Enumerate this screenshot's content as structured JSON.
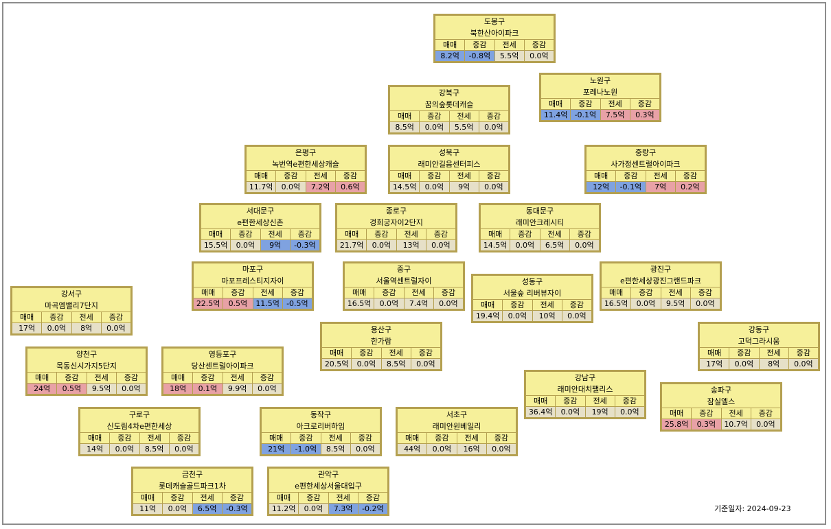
{
  "header_labels": [
    "매매",
    "증감",
    "전세",
    "증감"
  ],
  "colors": {
    "up": "#e8a1a6",
    "down": "#7fa2e0",
    "neutral": "#e6e0c8",
    "card": "#f6f09a",
    "border": "#b4a050"
  },
  "date_label": "기준일자: 2024-09-23",
  "districts": [
    {
      "key": "dobong",
      "name": "도봉구",
      "apt": "북한산아이파크",
      "vals": [
        "8.2억",
        "-0.8억",
        "5.5억",
        "0.0억"
      ],
      "trend": [
        "down",
        "down",
        "",
        ""
      ]
    },
    {
      "key": "nowon",
      "name": "노원구",
      "apt": "포레나노원",
      "vals": [
        "11.4억",
        "-0.1억",
        "7.5억",
        "0.3억"
      ],
      "trend": [
        "down",
        "down",
        "up",
        "up"
      ]
    },
    {
      "key": "gangbuk",
      "name": "강북구",
      "apt": "꿈의숲롯데캐슬",
      "vals": [
        "8.5억",
        "0.0억",
        "5.5억",
        "0.0억"
      ],
      "trend": [
        "",
        "",
        "",
        ""
      ]
    },
    {
      "key": "eunpyeong",
      "name": "은평구",
      "apt": "녹번역e편한세상캐슬",
      "vals": [
        "11.7억",
        "0.0억",
        "7.2억",
        "0.6억"
      ],
      "trend": [
        "",
        "",
        "up",
        "up"
      ]
    },
    {
      "key": "seongbuk",
      "name": "성북구",
      "apt": "래미안길음센터피스",
      "vals": [
        "14.5억",
        "0.0억",
        "9억",
        "0.0억"
      ],
      "trend": [
        "",
        "",
        "",
        ""
      ]
    },
    {
      "key": "jungnang",
      "name": "중랑구",
      "apt": "사가정센트럴아이파크",
      "vals": [
        "12억",
        "-0.1억",
        "7억",
        "0.2억"
      ],
      "trend": [
        "down",
        "down",
        "up",
        "up"
      ]
    },
    {
      "key": "seodaemun",
      "name": "서대문구",
      "apt": "e편한세상신촌",
      "vals": [
        "15.5억",
        "0.0억",
        "9억",
        "-0.3억"
      ],
      "trend": [
        "",
        "",
        "down",
        "down"
      ]
    },
    {
      "key": "jongno",
      "name": "종로구",
      "apt": "경희궁자이2단지",
      "vals": [
        "21.7억",
        "0.0억",
        "13억",
        "0.0억"
      ],
      "trend": [
        "",
        "",
        "",
        ""
      ]
    },
    {
      "key": "dongdaemun",
      "name": "동대문구",
      "apt": "래미안크레시티",
      "vals": [
        "14.5억",
        "0.0억",
        "6.5억",
        "0.0억"
      ],
      "trend": [
        "",
        "",
        "",
        ""
      ]
    },
    {
      "key": "mapo",
      "name": "마포구",
      "apt": "마포프레스티지자이",
      "vals": [
        "22.5억",
        "0.5억",
        "11.5억",
        "-0.5억"
      ],
      "trend": [
        "up",
        "up",
        "down",
        "down"
      ]
    },
    {
      "key": "junggu",
      "name": "중구",
      "apt": "서울역센트럴자이",
      "vals": [
        "16.5억",
        "0.0억",
        "7.4억",
        "0.0억"
      ],
      "trend": [
        "",
        "",
        "",
        ""
      ]
    },
    {
      "key": "gwangjin",
      "name": "광진구",
      "apt": "e편한세상광진그랜드파크",
      "vals": [
        "16.5억",
        "0.0억",
        "9.5억",
        "0.0억"
      ],
      "trend": [
        "",
        "",
        "",
        ""
      ]
    },
    {
      "key": "seongdong",
      "name": "성동구",
      "apt": "서울숲 리버뷰자이",
      "vals": [
        "19.4억",
        "0.0억",
        "10억",
        "0.0억"
      ],
      "trend": [
        "",
        "",
        "",
        ""
      ]
    },
    {
      "key": "gangseo",
      "name": "강서구",
      "apt": "마곡엠밸리7단지",
      "vals": [
        "17억",
        "0.0억",
        "8억",
        "0.0억"
      ],
      "trend": [
        "",
        "",
        "",
        ""
      ]
    },
    {
      "key": "yongsan",
      "name": "용산구",
      "apt": "한가람",
      "vals": [
        "20.5억",
        "0.0억",
        "8.5억",
        "0.0억"
      ],
      "trend": [
        "",
        "",
        "",
        ""
      ]
    },
    {
      "key": "gangdong",
      "name": "강동구",
      "apt": "고덕그라시움",
      "vals": [
        "17억",
        "0.0억",
        "8억",
        "0.0억"
      ],
      "trend": [
        "",
        "",
        "",
        ""
      ]
    },
    {
      "key": "yangcheon",
      "name": "양천구",
      "apt": "목동신시가지5단지",
      "vals": [
        "24억",
        "0.5억",
        "9.5억",
        "0.0억"
      ],
      "trend": [
        "up",
        "up",
        "",
        ""
      ]
    },
    {
      "key": "yeongdeungpo",
      "name": "영등포구",
      "apt": "당산센트럴아이파크",
      "vals": [
        "18억",
        "0.1억",
        "9.9억",
        "0.0억"
      ],
      "trend": [
        "up",
        "up",
        "",
        ""
      ]
    },
    {
      "key": "gangnam",
      "name": "강남구",
      "apt": "래미안대치팰리스",
      "vals": [
        "36.4억",
        "0.0억",
        "19억",
        "0.0억"
      ],
      "trend": [
        "",
        "",
        "",
        ""
      ]
    },
    {
      "key": "songpa",
      "name": "송파구",
      "apt": "잠실엘스",
      "vals": [
        "25.8억",
        "0.3억",
        "10.7억",
        "0.0억"
      ],
      "trend": [
        "up",
        "up",
        "",
        ""
      ]
    },
    {
      "key": "guro",
      "name": "구로구",
      "apt": "신도림4차e편한세상",
      "vals": [
        "14억",
        "0.0억",
        "8.5억",
        "0.0억"
      ],
      "trend": [
        "",
        "",
        "",
        ""
      ]
    },
    {
      "key": "dongjak",
      "name": "동작구",
      "apt": "아크로리버하임",
      "vals": [
        "21억",
        "-1.0억",
        "8.5억",
        "0.0억"
      ],
      "trend": [
        "down",
        "down",
        "",
        ""
      ]
    },
    {
      "key": "seocho",
      "name": "서초구",
      "apt": "래미안원베일리",
      "vals": [
        "44억",
        "0.0억",
        "16억",
        "0.0억"
      ],
      "trend": [
        "",
        "",
        "",
        ""
      ]
    },
    {
      "key": "geumcheon",
      "name": "금천구",
      "apt": "롯데캐슬골드파크1차",
      "vals": [
        "11억",
        "0.0억",
        "6.5억",
        "-0.3억"
      ],
      "trend": [
        "",
        "",
        "down",
        "down"
      ]
    },
    {
      "key": "gwanak",
      "name": "관악구",
      "apt": "e편한세상서울대입구",
      "vals": [
        "11.2억",
        "0.0억",
        "7.3억",
        "-0.2억"
      ],
      "trend": [
        "",
        "",
        "down",
        "down"
      ]
    }
  ]
}
